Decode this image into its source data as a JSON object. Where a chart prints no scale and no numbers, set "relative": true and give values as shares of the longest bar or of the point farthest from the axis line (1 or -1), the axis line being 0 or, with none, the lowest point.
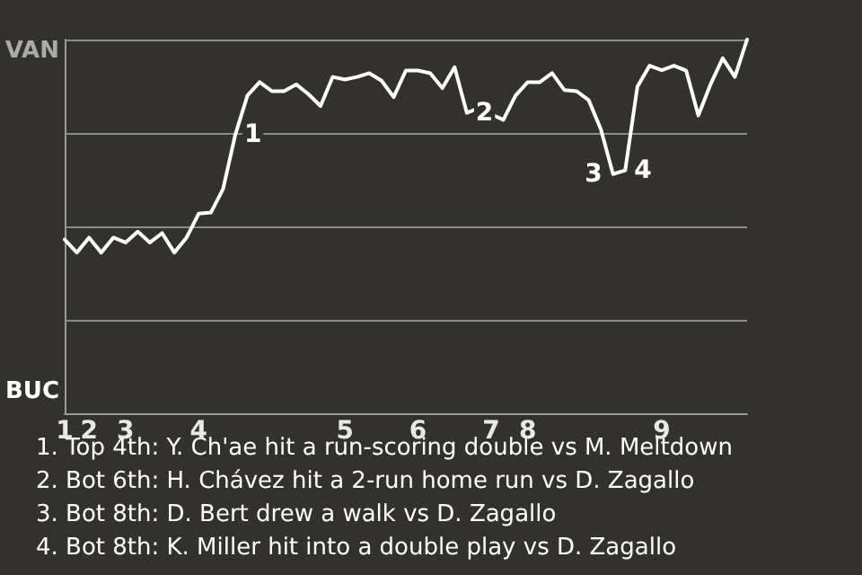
{
  "chart_data": {
    "type": "line",
    "relative": true,
    "categories": [
      "1",
      null,
      "2",
      null,
      null,
      "3",
      null,
      null,
      null,
      null,
      null,
      "4",
      null,
      null,
      null,
      null,
      null,
      null,
      null,
      null,
      null,
      null,
      null,
      "5",
      null,
      null,
      null,
      null,
      null,
      "6",
      null,
      null,
      null,
      null,
      null,
      "7",
      null,
      null,
      "8",
      null,
      null,
      null,
      null,
      null,
      null,
      null,
      null,
      null,
      null,
      "9",
      null,
      null,
      null,
      null,
      null,
      null,
      null
    ],
    "series": [
      {
        "color": "#ffffff",
        "values": [
          0.465,
          0.43,
          0.47,
          0.43,
          0.47,
          0.457,
          0.486,
          0.457,
          0.482,
          0.43,
          0.47,
          0.534,
          0.537,
          0.6,
          0.745,
          0.85,
          0.886,
          0.862,
          0.862,
          0.88,
          0.854,
          0.822,
          0.9,
          0.893,
          0.9,
          0.91,
          0.89,
          0.846,
          0.917,
          0.917,
          0.91,
          0.87,
          0.926,
          0.804,
          0.817,
          0.8,
          0.785,
          0.85,
          0.886,
          0.886,
          0.91,
          0.865,
          0.862,
          0.838,
          0.76,
          0.64,
          0.65,
          0.874,
          0.93,
          0.918,
          0.93,
          0.917,
          0.797,
          0.88,
          0.95,
          0.9,
          1.0
        ]
      }
    ],
    "grid": "y",
    "annotations": [
      "VAN",
      "BUC",
      {
        "text": "1",
        "y": 0.745
      },
      {
        "text": "2",
        "y": 0.804
      },
      {
        "text": "3",
        "y": 0.64
      },
      {
        "text": "4",
        "y": 0.65
      },
      "1. Top 4th: Y. Ch'ae hit a run-scoring double vs M. Meltdown",
      "2. Bot 6th: H. Chávez hit a 2-run home run vs D. Zagallo",
      "3. Bot 8th: D. Bert drew a walk vs D. Zagallo",
      "4. Bot 8th: K. Miller hit into a double play vs D. Zagallo"
    ]
  }
}
